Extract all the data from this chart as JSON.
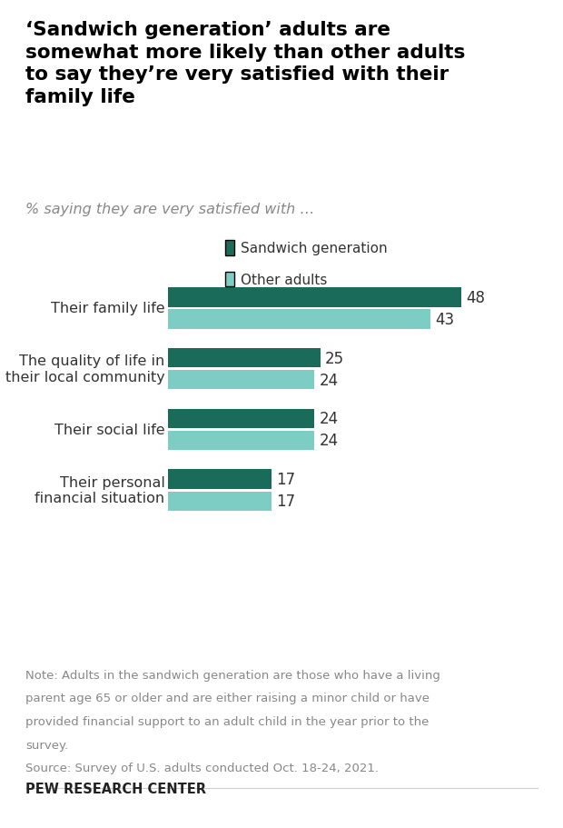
{
  "title": "‘Sandwich generation’ adults are\nsomewhat more likely than other adults\nto say they’re very satisfied with their\nfamily life",
  "subtitle": "% saying they are very satisfied with …",
  "categories": [
    "Their family life",
    "The quality of life in\ntheir local community",
    "Their social life",
    "Their personal\nfinancial situation"
  ],
  "sandwich_values": [
    48,
    25,
    24,
    17
  ],
  "other_values": [
    43,
    24,
    24,
    17
  ],
  "sandwich_color": "#1a6b5a",
  "other_color": "#7ecdc4",
  "legend_labels": [
    "Sandwich generation",
    "Other adults"
  ],
  "note_line1": "Note: Adults in the sandwich generation are those who have a living",
  "note_line2": "parent age 65 or older and are either raising a minor child or have",
  "note_line3": "provided financial support to an adult child in the year prior to the",
  "note_line4": "survey.",
  "note_line5": "Source: Survey of U.S. adults conducted Oct. 18-24, 2021.",
  "source_label": "PEW RESEARCH CENTER",
  "xlim": [
    0,
    58
  ],
  "bar_height": 0.32,
  "background_color": "#ffffff"
}
